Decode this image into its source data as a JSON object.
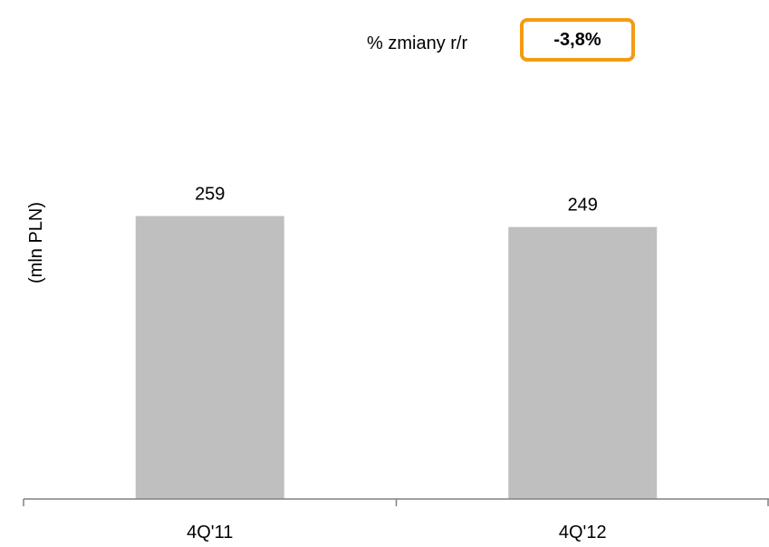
{
  "change_indicator": {
    "label": "% zmiany r/r",
    "value": "-3,8%",
    "border_color": "#f39c12"
  },
  "chart_data": {
    "type": "bar",
    "categories": [
      "4Q'11",
      "4Q'12"
    ],
    "values": [
      259,
      249
    ],
    "data_labels": [
      "259",
      "249"
    ],
    "title": "",
    "xlabel": "",
    "ylabel": "(mln PLN)",
    "ylim": [
      0,
      320
    ],
    "grid": false,
    "bar_color": "#bfbfbf",
    "axis_color": "#808080"
  }
}
